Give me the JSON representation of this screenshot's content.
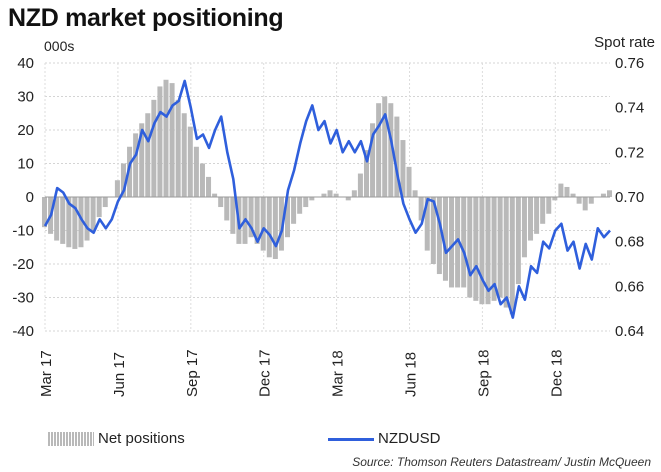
{
  "title": "NZD market positioning",
  "left_unit": "000s",
  "right_unit": "Spot rate",
  "source": "Source: Thomson Reuters Datastream/ Justin McQueen",
  "chart_data": {
    "type": "bar+line",
    "x_tick_labels": [
      "Mar 17",
      "Jun 17",
      "Sep 17",
      "Dec 17",
      "Mar 18",
      "Jun 18",
      "Sep 18",
      "Dec 18"
    ],
    "y_left": {
      "label": "000s",
      "min": -40,
      "max": 40,
      "ticks": [
        -40,
        -30,
        -20,
        -10,
        0,
        10,
        20,
        30,
        40
      ]
    },
    "y_right": {
      "label": "Spot rate",
      "min": 0.64,
      "max": 0.76,
      "ticks": [
        0.64,
        0.66,
        0.68,
        0.7,
        0.72,
        0.74,
        0.76
      ]
    },
    "grid": true,
    "legend_position": "bottom",
    "series": [
      {
        "name": "Net positions",
        "type": "bar",
        "axis": "left",
        "color": "#b9b9b9",
        "points": [
          [
            0.0,
            -9
          ],
          [
            0.5,
            -11
          ],
          [
            1.0,
            -13
          ],
          [
            1.5,
            -14
          ],
          [
            2.0,
            -15
          ],
          [
            2.5,
            -15.5
          ],
          [
            3.0,
            -15
          ],
          [
            3.5,
            -13
          ],
          [
            4.0,
            -10
          ],
          [
            4.5,
            -6
          ],
          [
            5.0,
            -3
          ],
          [
            5.5,
            0
          ],
          [
            6.0,
            5
          ],
          [
            6.5,
            10
          ],
          [
            7.0,
            15
          ],
          [
            7.5,
            19
          ],
          [
            8.0,
            22
          ],
          [
            8.5,
            25
          ],
          [
            9.0,
            29
          ],
          [
            9.5,
            33
          ],
          [
            10.0,
            35
          ],
          [
            10.5,
            34
          ],
          [
            11.0,
            29
          ],
          [
            11.5,
            25
          ],
          [
            12.0,
            21
          ],
          [
            12.5,
            15
          ],
          [
            13.0,
            10
          ],
          [
            13.5,
            6
          ],
          [
            14.0,
            1
          ],
          [
            14.5,
            -3
          ],
          [
            15.0,
            -7
          ],
          [
            15.5,
            -11
          ],
          [
            16.0,
            -14
          ],
          [
            16.5,
            -14
          ],
          [
            17.0,
            -12
          ],
          [
            17.5,
            -14
          ],
          [
            18.0,
            -16
          ],
          [
            18.5,
            -18
          ],
          [
            19.0,
            -18.5
          ],
          [
            19.5,
            -16
          ],
          [
            20.0,
            -12
          ],
          [
            20.5,
            -8
          ],
          [
            21.0,
            -5
          ],
          [
            21.5,
            -3
          ],
          [
            22.0,
            -1
          ],
          [
            22.5,
            0
          ],
          [
            23.0,
            1
          ],
          [
            23.5,
            2
          ],
          [
            24.0,
            1
          ],
          [
            24.5,
            0
          ],
          [
            25.0,
            -1
          ],
          [
            25.5,
            2
          ],
          [
            26.0,
            7
          ],
          [
            26.5,
            14
          ],
          [
            27.0,
            22
          ],
          [
            27.5,
            28
          ],
          [
            28.0,
            30
          ],
          [
            28.5,
            28
          ],
          [
            29.0,
            24
          ],
          [
            29.5,
            17
          ],
          [
            30.0,
            9
          ],
          [
            30.5,
            2
          ],
          [
            31.0,
            -7
          ],
          [
            31.5,
            -16
          ],
          [
            32.0,
            -20
          ],
          [
            32.5,
            -23
          ],
          [
            33.0,
            -25
          ],
          [
            33.5,
            -27
          ],
          [
            34.0,
            -27
          ],
          [
            34.5,
            -27
          ],
          [
            35.0,
            -30
          ],
          [
            35.5,
            -31
          ],
          [
            36.0,
            -32
          ],
          [
            36.5,
            -32
          ],
          [
            37.0,
            -31
          ],
          [
            37.5,
            -30
          ],
          [
            38.0,
            -33
          ],
          [
            38.5,
            -35
          ],
          [
            39.0,
            -26
          ],
          [
            39.5,
            -18
          ],
          [
            40.0,
            -13
          ],
          [
            40.5,
            -11
          ],
          [
            41.0,
            -8
          ],
          [
            41.5,
            -5
          ],
          [
            42.0,
            -1
          ],
          [
            42.5,
            4
          ],
          [
            43.0,
            3
          ],
          [
            43.5,
            1
          ],
          [
            44.0,
            -2
          ],
          [
            44.5,
            -4
          ],
          [
            45.0,
            -2
          ],
          [
            45.5,
            0
          ],
          [
            46.0,
            1
          ],
          [
            46.5,
            2
          ]
        ]
      },
      {
        "name": "NZDUSD",
        "type": "line",
        "axis": "right",
        "color": "#2f5fdc",
        "points": [
          [
            0.0,
            0.687
          ],
          [
            0.5,
            0.692
          ],
          [
            1.0,
            0.704
          ],
          [
            1.5,
            0.702
          ],
          [
            2.0,
            0.697
          ],
          [
            2.5,
            0.695
          ],
          [
            3.0,
            0.69
          ],
          [
            3.5,
            0.686
          ],
          [
            4.0,
            0.684
          ],
          [
            4.5,
            0.69
          ],
          [
            5.0,
            0.686
          ],
          [
            5.5,
            0.69
          ],
          [
            6.0,
            0.698
          ],
          [
            6.5,
            0.703
          ],
          [
            7.0,
            0.715
          ],
          [
            7.5,
            0.719
          ],
          [
            8.0,
            0.73
          ],
          [
            8.5,
            0.725
          ],
          [
            9.0,
            0.733
          ],
          [
            9.5,
            0.738
          ],
          [
            10.0,
            0.736
          ],
          [
            10.5,
            0.741
          ],
          [
            11.0,
            0.743
          ],
          [
            11.5,
            0.752
          ],
          [
            12.0,
            0.74
          ],
          [
            12.5,
            0.726
          ],
          [
            13.0,
            0.728
          ],
          [
            13.5,
            0.722
          ],
          [
            14.0,
            0.73
          ],
          [
            14.5,
            0.736
          ],
          [
            15.0,
            0.72
          ],
          [
            15.5,
            0.708
          ],
          [
            16.0,
            0.686
          ],
          [
            16.5,
            0.69
          ],
          [
            17.0,
            0.686
          ],
          [
            17.5,
            0.68
          ],
          [
            18.0,
            0.686
          ],
          [
            18.5,
            0.683
          ],
          [
            19.0,
            0.678
          ],
          [
            19.5,
            0.685
          ],
          [
            20.0,
            0.703
          ],
          [
            20.5,
            0.712
          ],
          [
            21.0,
            0.724
          ],
          [
            21.5,
            0.734
          ],
          [
            22.0,
            0.741
          ],
          [
            22.5,
            0.73
          ],
          [
            23.0,
            0.734
          ],
          [
            23.5,
            0.724
          ],
          [
            24.0,
            0.73
          ],
          [
            24.5,
            0.72
          ],
          [
            25.0,
            0.725
          ],
          [
            25.5,
            0.72
          ],
          [
            26.0,
            0.725
          ],
          [
            26.5,
            0.716
          ],
          [
            27.0,
            0.728
          ],
          [
            27.5,
            0.732
          ],
          [
            28.0,
            0.737
          ],
          [
            28.5,
            0.725
          ],
          [
            29.0,
            0.71
          ],
          [
            29.5,
            0.697
          ],
          [
            30.0,
            0.69
          ],
          [
            30.5,
            0.684
          ],
          [
            31.0,
            0.688
          ],
          [
            31.5,
            0.699
          ],
          [
            32.0,
            0.698
          ],
          [
            32.5,
            0.688
          ],
          [
            33.0,
            0.675
          ],
          [
            33.5,
            0.678
          ],
          [
            34.0,
            0.681
          ],
          [
            34.5,
            0.675
          ],
          [
            35.0,
            0.665
          ],
          [
            35.5,
            0.669
          ],
          [
            36.0,
            0.663
          ],
          [
            36.5,
            0.658
          ],
          [
            37.0,
            0.661
          ],
          [
            37.5,
            0.652
          ],
          [
            38.0,
            0.655
          ],
          [
            38.5,
            0.646
          ],
          [
            39.0,
            0.66
          ],
          [
            39.5,
            0.654
          ],
          [
            40.0,
            0.669
          ],
          [
            40.5,
            0.666
          ],
          [
            41.0,
            0.68
          ],
          [
            41.5,
            0.677
          ],
          [
            42.0,
            0.685
          ],
          [
            42.5,
            0.688
          ],
          [
            43.0,
            0.676
          ],
          [
            43.5,
            0.68
          ],
          [
            44.0,
            0.668
          ],
          [
            44.5,
            0.679
          ],
          [
            45.0,
            0.672
          ],
          [
            45.5,
            0.686
          ],
          [
            46.0,
            0.682
          ],
          [
            46.5,
            0.685
          ]
        ]
      }
    ]
  }
}
